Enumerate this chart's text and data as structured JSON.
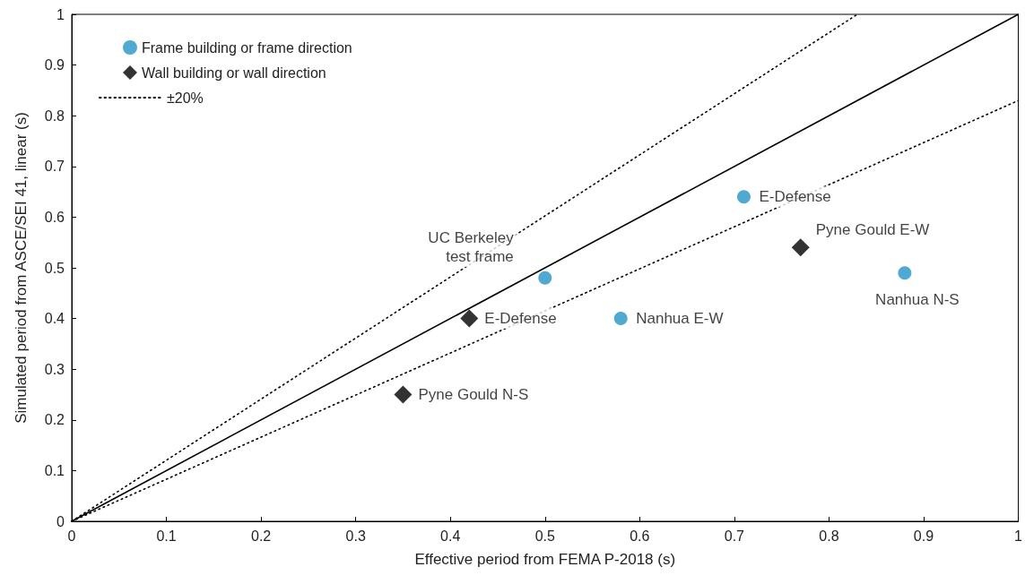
{
  "chart_data": {
    "type": "scatter",
    "xlabel": "Effective period from FEMA P-2018 (s)",
    "ylabel": "Simulated period from ASCE/SEI 41, linear (s)",
    "xlim": [
      0,
      1
    ],
    "ylim": [
      0,
      1
    ],
    "xticks": [
      0,
      0.1,
      0.2,
      0.3,
      0.4,
      0.5,
      0.6,
      0.7,
      0.8,
      0.9,
      1
    ],
    "yticks": [
      0,
      0.1,
      0.2,
      0.3,
      0.4,
      0.5,
      0.6,
      0.7,
      0.8,
      0.9,
      1
    ],
    "grid": false,
    "legend": "top left",
    "series": [
      {
        "name": "Frame building or frame direction",
        "marker": "circle",
        "color": "#2393c4",
        "x": [
          0.5,
          0.58,
          0.71,
          0.88
        ],
        "values": [
          0.48,
          0.4,
          0.64,
          0.49
        ]
      },
      {
        "name": "Wall building or wall direction",
        "marker": "diamond",
        "color": "#000000",
        "x": [
          0.35,
          0.42,
          0.77
        ],
        "values": [
          0.25,
          0.4,
          0.54
        ]
      },
      {
        "name": "±20%",
        "type": "line",
        "marker": "none",
        "line_style": "dotted",
        "color": "#000000",
        "x": [
          0,
          0.83
        ],
        "values": [
          0,
          1
        ]
      },
      {
        "type": "line",
        "marker": "none",
        "line_style": "dotted",
        "color": "#000000",
        "x": [
          0,
          1
        ],
        "values": [
          0,
          0.83
        ]
      },
      {
        "type": "line",
        "marker": "none",
        "line_style": "solid",
        "color": "#000000",
        "x": [
          0,
          1
        ],
        "values": [
          0,
          1
        ]
      }
    ],
    "annotations": [
      {
        "text": "UC Berkeley\ntest frame",
        "x": 0.5,
        "y": 0.48
      },
      {
        "text": "Nanhua E-W",
        "x": 0.58,
        "y": 0.4
      },
      {
        "text": "E-Defense",
        "x": 0.71,
        "y": 0.64
      },
      {
        "text": "Nanhua N-S",
        "x": 0.88,
        "y": 0.49
      },
      {
        "text": "Pyne Gould N-S",
        "x": 0.35,
        "y": 0.25
      },
      {
        "text": "E-Defense",
        "x": 0.42,
        "y": 0.4
      },
      {
        "text": "Pyne Gould E-W",
        "x": 0.77,
        "y": 0.54
      }
    ]
  }
}
